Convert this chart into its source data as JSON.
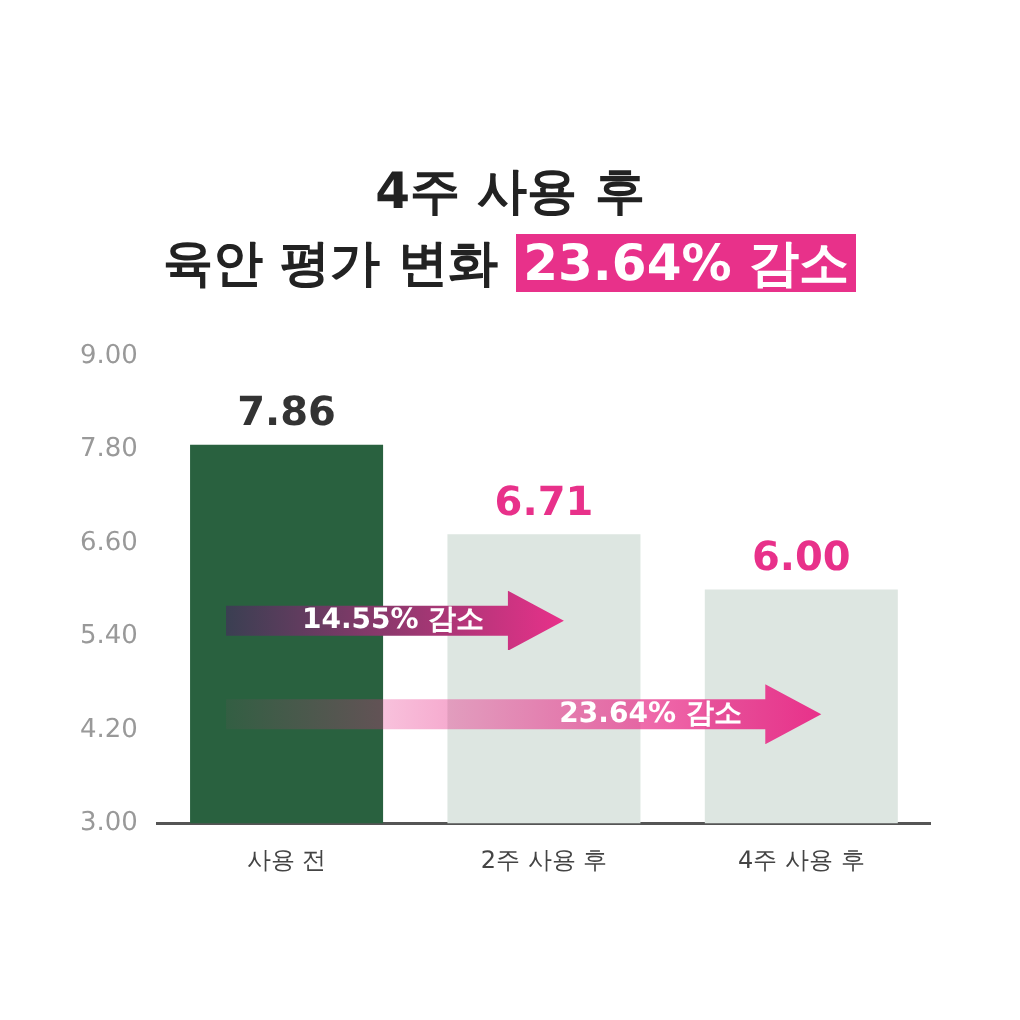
{
  "chart_data": {
    "type": "bar",
    "title": "4주 사용 후",
    "subtitle": "육안 평가 변화 23.64% 감소",
    "categories": [
      "사용 전",
      "2주 사용 후",
      "4주 사용 후"
    ],
    "values": [
      7.86,
      6.71,
      6.0
    ],
    "colors": [
      "#29613f",
      "#dde6e1",
      "#dde6e1"
    ],
    "ylim": [
      3,
      9
    ],
    "yticks": [
      {
        "value": 3,
        "label": "3.00"
      },
      {
        "value": 4.2,
        "label": "4.20"
      },
      {
        "value": 5.4,
        "label": "5.40"
      },
      {
        "value": 6.6,
        "label": "6.60"
      },
      {
        "value": 7.8,
        "label": "7.80"
      },
      {
        "value": 9,
        "label": "9.00"
      }
    ],
    "value_labels": [
      "7.86",
      "6.71",
      "6.00"
    ],
    "grid": false,
    "legend": false,
    "annotations": [
      "14.55% 감소",
      "23.64% 감소"
    ]
  }
}
